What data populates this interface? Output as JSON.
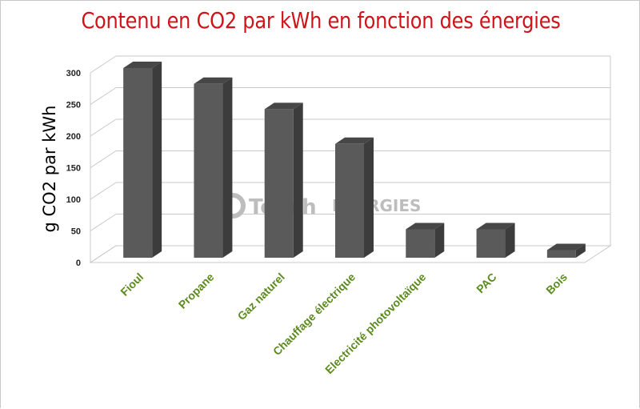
{
  "title": "Contenu en CO2 par kWh en fonction des énergies",
  "watermark": {
    "text_a": "Touch",
    "text_b": "ENERGIES",
    "color": "#bdbdbd"
  },
  "colors": {
    "title": "#d0131a",
    "category_labels": "#5b8a1e",
    "bar_front": "#5a5a5a",
    "bar_side": "#3c3c3c",
    "bar_top": "#474747",
    "grid": "#c9c9c9"
  },
  "chart_data": {
    "type": "bar",
    "title": "Contenu en CO2 par kWh en fonction des énergies",
    "xlabel": "",
    "ylabel": "g CO2 par kWh",
    "ylim": [
      0,
      300
    ],
    "yticks": [
      0,
      50,
      100,
      150,
      200,
      250,
      300
    ],
    "grid": true,
    "legend": "none",
    "categories": [
      "Fioul",
      "Propane",
      "Gaz naturel",
      "Chauffage électrique",
      "Electricité photovoltaïque",
      "PAC",
      "Bois"
    ],
    "values": [
      300,
      275,
      235,
      180,
      45,
      45,
      12
    ]
  }
}
